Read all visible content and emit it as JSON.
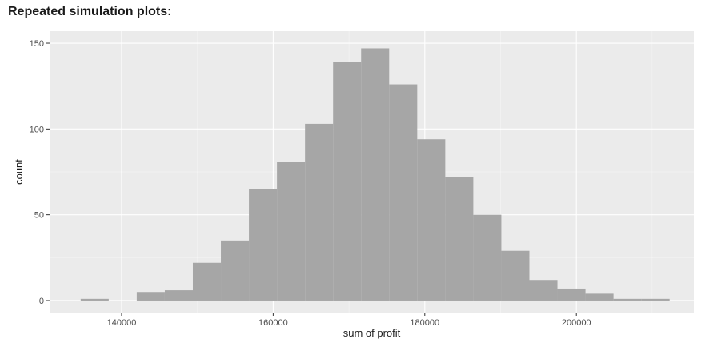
{
  "heading": "Repeated simulation plots:",
  "chart_data": {
    "type": "bar",
    "xlabel": "sum of profit",
    "ylabel": "count",
    "xlim": [
      130500,
      215500
    ],
    "ylim": [
      -7,
      157
    ],
    "x_ticks": [
      140000,
      160000,
      180000,
      200000
    ],
    "y_ticks": [
      0,
      50,
      100,
      150
    ],
    "grid": true,
    "bin_width": 3700,
    "bins": [
      {
        "start": 134600,
        "end": 138300,
        "count": 1
      },
      {
        "start": 138300,
        "end": 142000,
        "count": 0
      },
      {
        "start": 142000,
        "end": 145700,
        "count": 5
      },
      {
        "start": 145700,
        "end": 149400,
        "count": 6
      },
      {
        "start": 149400,
        "end": 153100,
        "count": 22
      },
      {
        "start": 153100,
        "end": 156800,
        "count": 35
      },
      {
        "start": 156800,
        "end": 160500,
        "count": 65
      },
      {
        "start": 160500,
        "end": 164200,
        "count": 81
      },
      {
        "start": 164200,
        "end": 167900,
        "count": 103
      },
      {
        "start": 167900,
        "end": 171600,
        "count": 139
      },
      {
        "start": 171600,
        "end": 175300,
        "count": 147
      },
      {
        "start": 175300,
        "end": 179000,
        "count": 126
      },
      {
        "start": 179000,
        "end": 182700,
        "count": 94
      },
      {
        "start": 182700,
        "end": 186400,
        "count": 72
      },
      {
        "start": 186400,
        "end": 190100,
        "count": 50
      },
      {
        "start": 190100,
        "end": 193800,
        "count": 29
      },
      {
        "start": 193800,
        "end": 197500,
        "count": 12
      },
      {
        "start": 197500,
        "end": 201200,
        "count": 7
      },
      {
        "start": 201200,
        "end": 204900,
        "count": 4
      },
      {
        "start": 204900,
        "end": 208600,
        "count": 1
      },
      {
        "start": 208600,
        "end": 212300,
        "count": 1
      }
    ],
    "colors": {
      "panel_background": "#ebebeb",
      "grid_major": "#ffffff",
      "bar_fill": "#a6a6a6"
    }
  }
}
